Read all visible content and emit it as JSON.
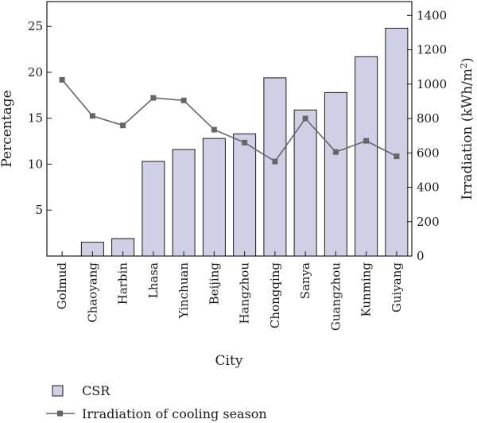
{
  "chart_data": {
    "type": "bar+line",
    "xlabel": "City",
    "categories": [
      "Golmud",
      "Chaoyang",
      "Harbin",
      "Lhasa",
      "Yinchuan",
      "Beijing",
      "Hangzhou",
      "Chongqing",
      "Sanya",
      "Guangzhou",
      "Kunming",
      "Guiyang"
    ],
    "left_axis": {
      "label": "Percentage",
      "ylim": [
        0,
        27.7
      ],
      "ticks": [
        5,
        10,
        15,
        20,
        25
      ]
    },
    "right_axis": {
      "label_main": "Irradiation (kWh/m",
      "label_sup": "2",
      "label_end": ")",
      "ylim": [
        0,
        1480
      ],
      "ticks": [
        0,
        200,
        400,
        600,
        800,
        1000,
        1200,
        1400
      ]
    },
    "series": [
      {
        "name": "CSR",
        "type": "bar",
        "axis": "left",
        "color": "#cfcfe6",
        "values": [
          0,
          1.5,
          1.9,
          10.3,
          11.6,
          12.8,
          13.3,
          19.4,
          15.9,
          17.8,
          21.7,
          24.8
        ]
      },
      {
        "name": "Irradiation of cooling season",
        "type": "line",
        "axis": "right",
        "color": "#666666",
        "values": [
          1025,
          815,
          760,
          920,
          905,
          735,
          660,
          550,
          800,
          605,
          670,
          580
        ]
      }
    ],
    "legend_position": "bottom-left",
    "grid": false
  }
}
